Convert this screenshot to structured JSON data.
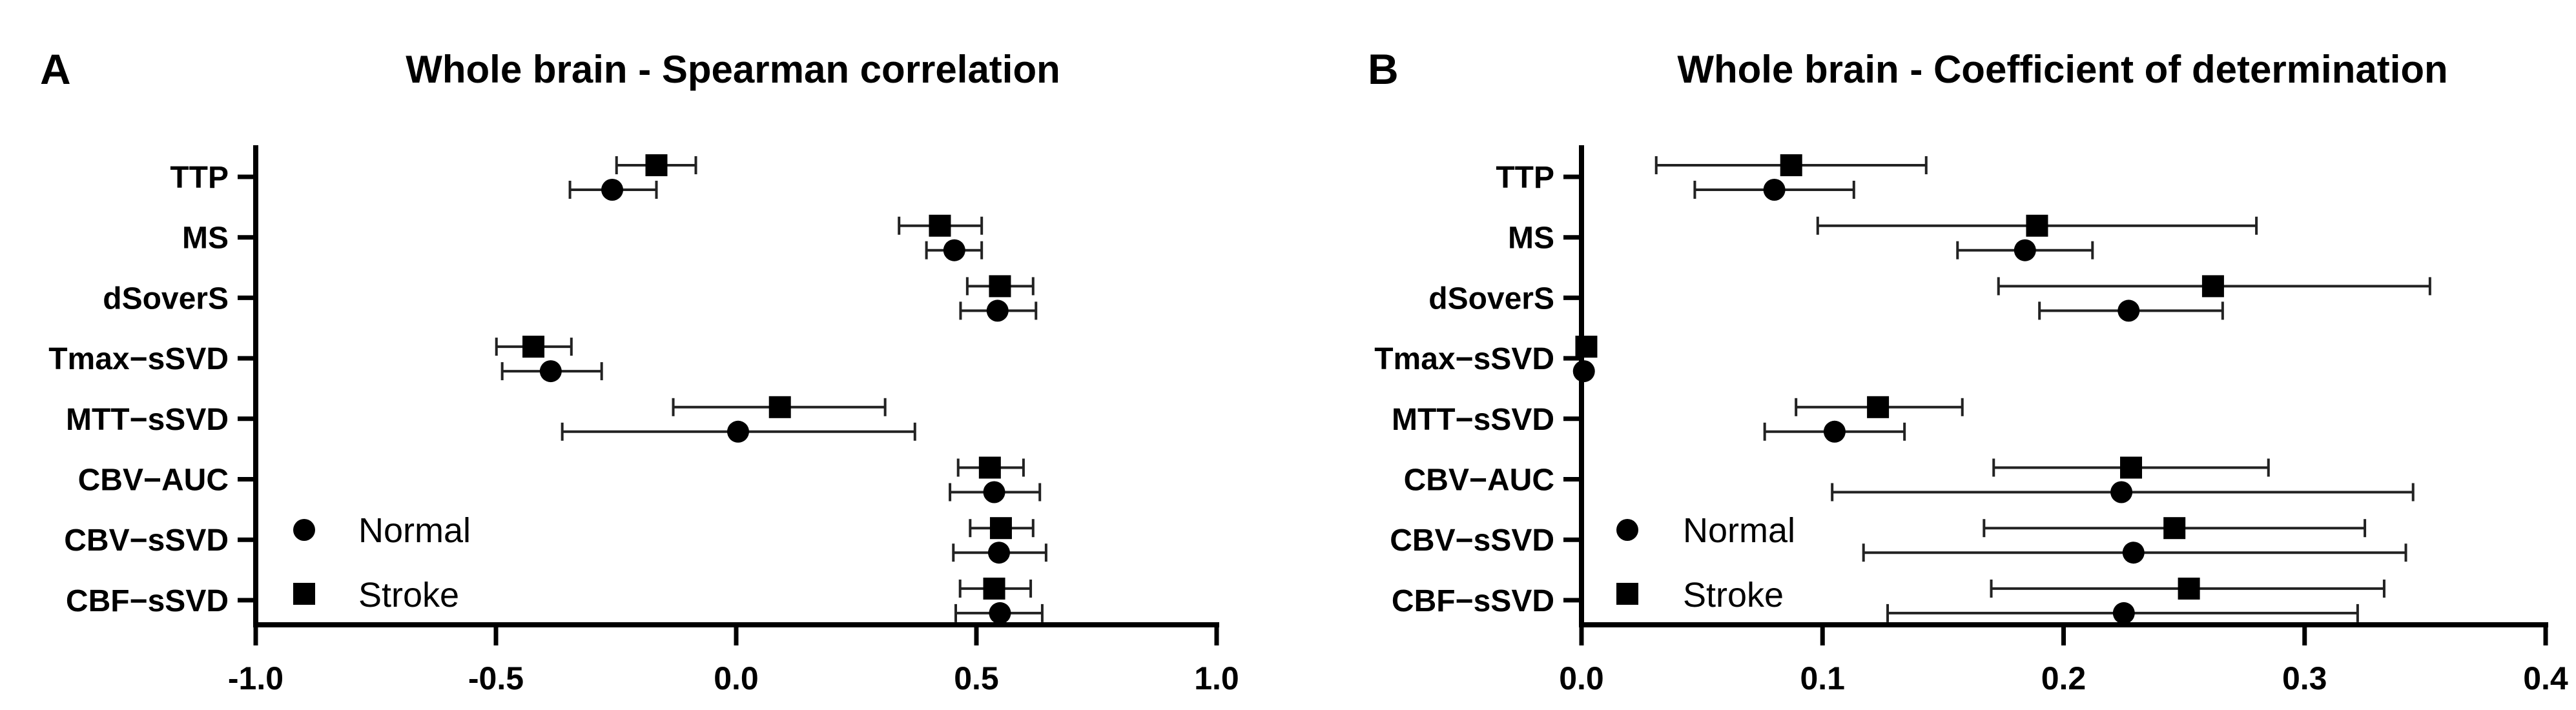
{
  "chart_data": [
    {
      "type": "scatter",
      "panel_label": "A",
      "title": "Whole brain - Spearman correlation",
      "xlabel": "",
      "ylabel": "",
      "xlim": [
        -1.0,
        1.0
      ],
      "xticks": [
        "-1.0",
        "-0.5",
        "0.0",
        "0.5",
        "1.0"
      ],
      "xtick_values": [
        -1.0,
        -0.5,
        0.0,
        0.5,
        1.0
      ],
      "categories": [
        "TTP",
        "MS",
        "dSoverS",
        "Tmax−sSVD",
        "MTT−sSVD",
        "CBV−AUC",
        "CBV−sSVD",
        "CBF−sSVD"
      ],
      "legend": {
        "placement": "bottom-left",
        "entries": [
          "Normal",
          "Stroke"
        ]
      },
      "series": [
        {
          "name": "Normal",
          "marker": "circle",
          "values": [
            -0.258,
            0.454,
            0.544,
            -0.386,
            0.004,
            0.537,
            0.547,
            0.549
          ],
          "lower": [
            -0.346,
            0.396,
            0.467,
            -0.487,
            -0.362,
            0.445,
            0.452,
            0.457
          ],
          "upper": [
            -0.166,
            0.511,
            0.624,
            -0.28,
            0.372,
            0.632,
            0.645,
            0.637
          ]
        },
        {
          "name": "Stroke",
          "marker": "square",
          "values": [
            -0.166,
            0.424,
            0.549,
            -0.422,
            0.091,
            0.528,
            0.551,
            0.537
          ],
          "lower": [
            -0.249,
            0.339,
            0.481,
            -0.499,
            -0.131,
            0.462,
            0.487,
            0.466
          ],
          "upper": [
            -0.084,
            0.511,
            0.618,
            -0.343,
            0.31,
            0.598,
            0.618,
            0.613
          ]
        }
      ]
    },
    {
      "type": "scatter",
      "panel_label": "B",
      "title": "Whole brain - Coefficient of determination",
      "xlabel": "",
      "ylabel": "",
      "xlim": [
        0.0,
        0.4
      ],
      "xticks": [
        "0.0",
        "0.1",
        "0.2",
        "0.3",
        "0.4"
      ],
      "xtick_values": [
        0.0,
        0.1,
        0.2,
        0.3,
        0.4
      ],
      "categories": [
        "TTP",
        "MS",
        "dSoverS",
        "Tmax−sSVD",
        "MTT−sSVD",
        "CBV−AUC",
        "CBV−sSVD",
        "CBF−sSVD"
      ],
      "legend": {
        "placement": "bottom-left",
        "entries": [
          "Normal",
          "Stroke"
        ]
      },
      "series": [
        {
          "name": "Normal",
          "marker": "circle",
          "values": [
            0.08,
            0.184,
            0.227,
            0.001,
            0.105,
            0.224,
            0.229,
            0.225
          ],
          "lower": [
            0.047,
            0.156,
            0.19,
            0.001,
            0.076,
            0.104,
            0.117,
            0.127
          ],
          "upper": [
            0.113,
            0.212,
            0.266,
            0.001,
            0.134,
            0.345,
            0.342,
            0.322
          ]
        },
        {
          "name": "Stroke",
          "marker": "square",
          "values": [
            0.087,
            0.189,
            0.262,
            0.002,
            0.123,
            0.228,
            0.246,
            0.252
          ],
          "lower": [
            0.031,
            0.098,
            0.173,
            0.002,
            0.089,
            0.171,
            0.167,
            0.17
          ],
          "upper": [
            0.143,
            0.28,
            0.352,
            0.002,
            0.158,
            0.285,
            0.325,
            0.333
          ]
        }
      ]
    }
  ]
}
